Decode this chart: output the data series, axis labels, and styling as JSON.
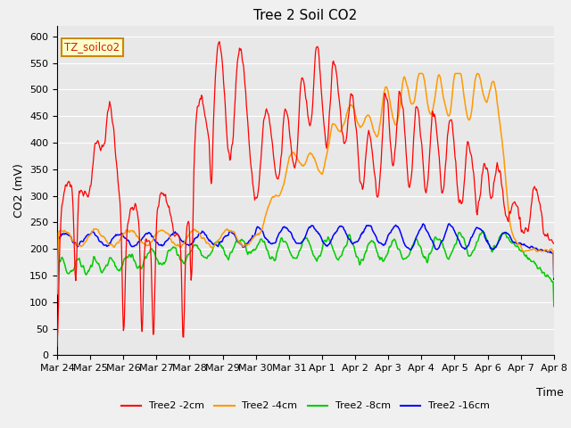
{
  "title": "Tree 2 Soil CO2",
  "ylabel": "CO2 (mV)",
  "xlabel": "Time",
  "annotation": "TZ_soilco2",
  "ylim": [
    0,
    620
  ],
  "yticks": [
    0,
    50,
    100,
    150,
    200,
    250,
    300,
    350,
    400,
    450,
    500,
    550,
    600
  ],
  "x_labels": [
    "Mar 24",
    "Mar 25",
    "Mar 26",
    "Mar 27",
    "Mar 28",
    "Mar 29",
    "Mar 30",
    "Mar 31",
    "Apr 1",
    "Apr 2",
    "Apr 3",
    "Apr 4",
    "Apr 5",
    "Apr 6",
    "Apr 7",
    "Apr 8"
  ],
  "colors": {
    "red": "#ff0000",
    "orange": "#ff9900",
    "green": "#00cc00",
    "blue": "#0000ff"
  },
  "legend": [
    "Tree2 -2cm",
    "Tree2 -4cm",
    "Tree2 -8cm",
    "Tree2 -16cm"
  ],
  "bg_color": "#e8e8e8",
  "plot_bg": "#e8e8e8"
}
